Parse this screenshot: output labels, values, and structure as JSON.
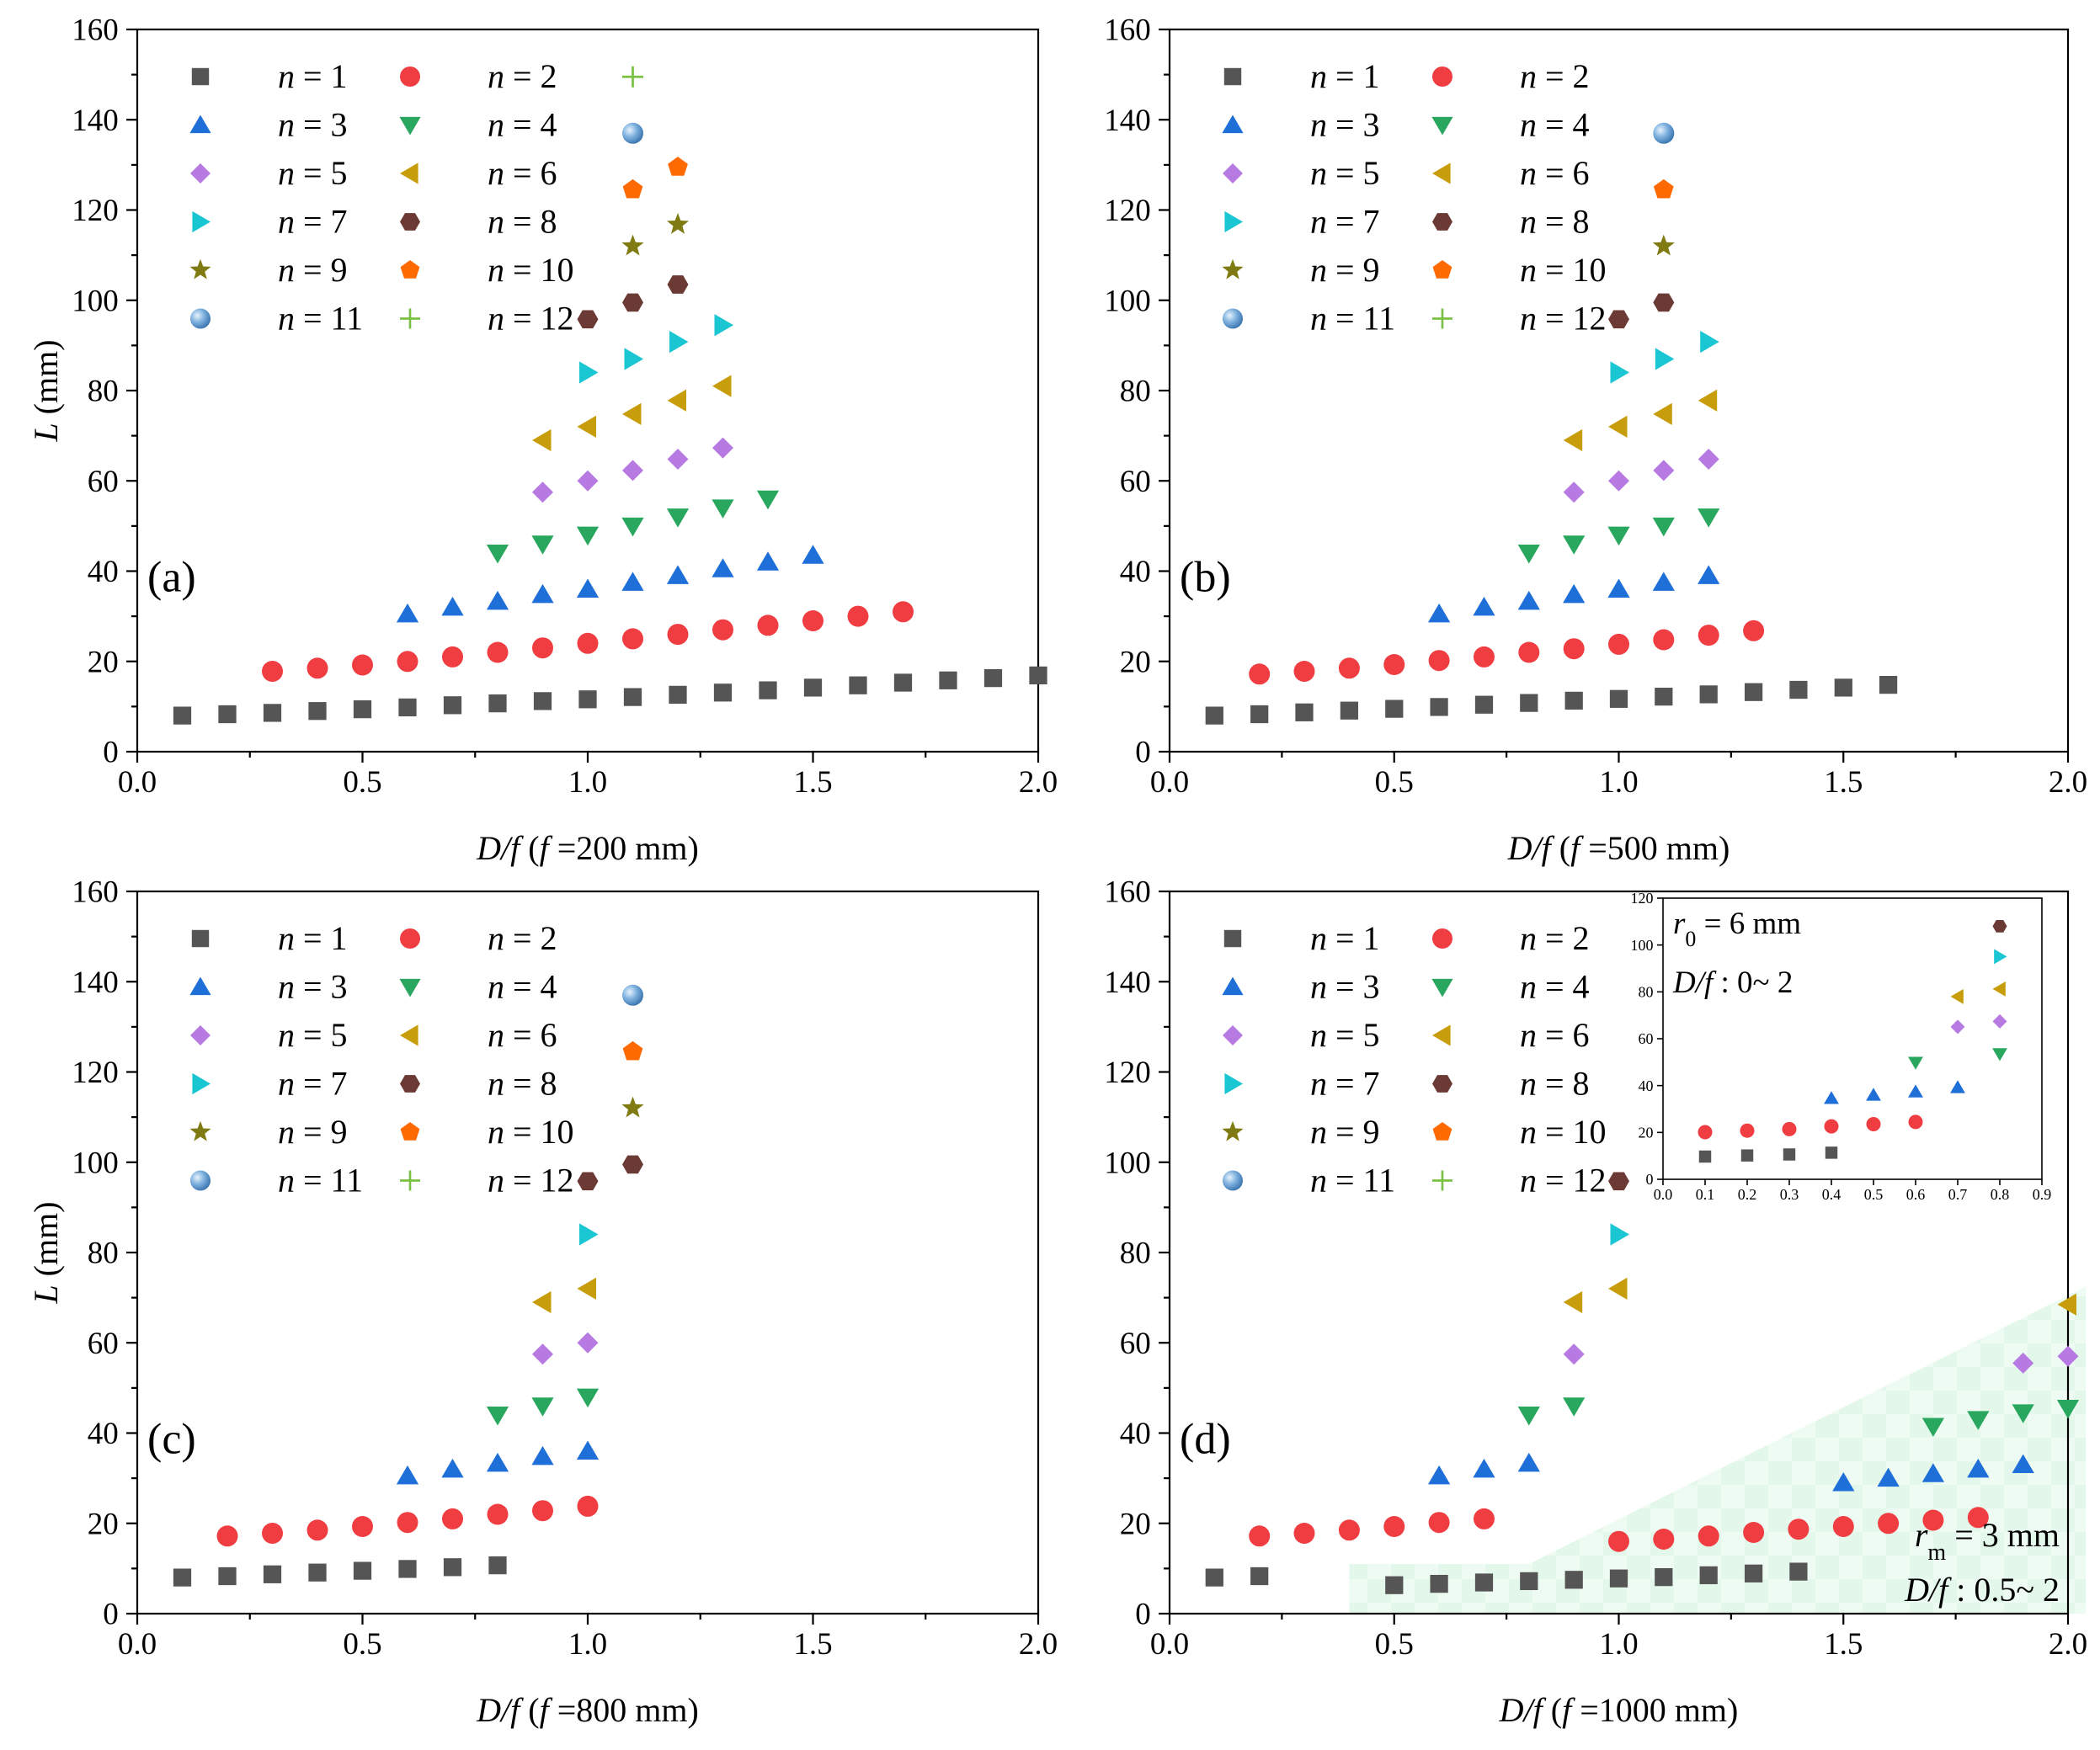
{
  "figure": {
    "panel_count": 4
  },
  "colors": {
    "n1": "#555555",
    "n2": "#ef3d42",
    "n3": "#1f6fd8",
    "n4": "#2aa75f",
    "n5": "#b779e2",
    "n6": "#c89d0b",
    "n7": "#19c6d2",
    "n8": "#6b3a35",
    "n9": "#7f7b12",
    "n10": "#ff6a00",
    "n11": "#4f8fc7",
    "n12": "#7ac142",
    "shade": "#d8f5e4"
  },
  "legend_series": [
    {
      "key": "n1",
      "n_label": "n",
      "eq_label": " = 1",
      "marker": "square"
    },
    {
      "key": "n2",
      "n_label": "n",
      "eq_label": " = 2",
      "marker": "circle"
    },
    {
      "key": "n3",
      "n_label": "n",
      "eq_label": " = 3",
      "marker": "tri-up"
    },
    {
      "key": "n4",
      "n_label": "n",
      "eq_label": " = 4",
      "marker": "tri-down"
    },
    {
      "key": "n5",
      "n_label": "n",
      "eq_label": " = 5",
      "marker": "diamond"
    },
    {
      "key": "n6",
      "n_label": "n",
      "eq_label": " = 6",
      "marker": "tri-left"
    },
    {
      "key": "n7",
      "n_label": "n",
      "eq_label": " = 7",
      "marker": "tri-right"
    },
    {
      "key": "n8",
      "n_label": "n",
      "eq_label": " = 8",
      "marker": "hexagon"
    },
    {
      "key": "n9",
      "n_label": "n",
      "eq_label": " = 9",
      "marker": "star"
    },
    {
      "key": "n10",
      "n_label": "n",
      "eq_label": " = 10",
      "marker": "pentagon"
    },
    {
      "key": "n11",
      "n_label": "n",
      "eq_label": " = 11",
      "marker": "sphere"
    },
    {
      "key": "n12",
      "n_label": "n",
      "eq_label": " = 12",
      "marker": "plus"
    }
  ],
  "chart_data": [
    {
      "type": "scatter",
      "panel_label": "(a)",
      "ylabel_var": "L",
      "ylabel_unit": " (mm)",
      "xlabel_var": "D/f",
      "xlabel_open": "  (",
      "xlabel_f": "f",
      "xlabel_val": " =200 mm)",
      "xlim": [
        0,
        2
      ],
      "ylim": [
        0,
        160
      ],
      "xticks": [
        "0.0",
        "0.5",
        "1.0",
        "1.5",
        "2.0"
      ],
      "yticks": [
        "0",
        "20",
        "40",
        "60",
        "80",
        "100",
        "120",
        "140",
        "160"
      ],
      "series": [
        {
          "key": "n1",
          "x": [
            0.1,
            0.2,
            0.3,
            0.4,
            0.5,
            0.6,
            0.7,
            0.8,
            0.9,
            1.0,
            1.1,
            1.2,
            1.3,
            1.4,
            1.5,
            1.6,
            1.7,
            1.8,
            1.9,
            2.0
          ],
          "y": [
            8,
            8.3,
            8.6,
            9,
            9.4,
            9.8,
            10.3,
            10.7,
            11.2,
            11.6,
            12.1,
            12.6,
            13.1,
            13.6,
            14.2,
            14.7,
            15.3,
            15.8,
            16.3,
            16.9
          ]
        },
        {
          "key": "n2",
          "x": [
            0.3,
            0.4,
            0.5,
            0.6,
            0.7,
            0.8,
            0.9,
            1.0,
            1.1,
            1.2,
            1.3,
            1.4,
            1.5,
            1.6,
            1.7
          ],
          "y": [
            17.8,
            18.5,
            19.2,
            20,
            21,
            22,
            23,
            24,
            25,
            26,
            27,
            28,
            29,
            30,
            31
          ]
        },
        {
          "key": "n3",
          "x": [
            0.6,
            0.7,
            0.8,
            0.9,
            1.0,
            1.1,
            1.2,
            1.3,
            1.4,
            1.5
          ],
          "y": [
            30.5,
            32,
            33.3,
            34.8,
            36,
            37.5,
            39,
            40.5,
            42,
            43.5
          ]
        },
        {
          "key": "n4",
          "x": [
            0.8,
            0.9,
            1.0,
            1.1,
            1.2,
            1.3,
            1.4
          ],
          "y": [
            44,
            46,
            48,
            50,
            52,
            54,
            56
          ]
        },
        {
          "key": "n5",
          "x": [
            0.9,
            1.0,
            1.1,
            1.2,
            1.3
          ],
          "y": [
            57.5,
            60,
            62.3,
            64.8,
            67.3
          ]
        },
        {
          "key": "n6",
          "x": [
            0.9,
            1.0,
            1.1,
            1.2,
            1.3
          ],
          "y": [
            69,
            72,
            74.8,
            77.8,
            81
          ]
        },
        {
          "key": "n7",
          "x": [
            1.0,
            1.1,
            1.2,
            1.3
          ],
          "y": [
            84,
            87,
            90.8,
            94.5
          ]
        },
        {
          "key": "n8",
          "x": [
            1.0,
            1.1,
            1.2
          ],
          "y": [
            95.8,
            99.5,
            103.5
          ]
        },
        {
          "key": "n9",
          "x": [
            1.1,
            1.2
          ],
          "y": [
            112,
            116.8
          ]
        },
        {
          "key": "n10",
          "x": [
            1.1,
            1.2
          ],
          "y": [
            124.5,
            129.5
          ]
        },
        {
          "key": "n11",
          "x": [
            1.1
          ],
          "y": [
            137
          ]
        },
        {
          "key": "n12",
          "x": [
            1.1
          ],
          "y": [
            149.5
          ]
        }
      ]
    },
    {
      "type": "scatter",
      "panel_label": "(b)",
      "ylabel_var": "",
      "ylabel_unit": "",
      "xlabel_var": "D/f",
      "xlabel_open": "  (",
      "xlabel_f": "f",
      "xlabel_val": " =500 mm)",
      "xlim": [
        0,
        2
      ],
      "ylim": [
        0,
        160
      ],
      "xticks": [
        "0.0",
        "0.5",
        "1.0",
        "1.5",
        "2.0"
      ],
      "yticks": [
        "0",
        "20",
        "40",
        "60",
        "80",
        "100",
        "120",
        "140",
        "160"
      ],
      "series": [
        {
          "key": "n1",
          "x": [
            0.1,
            0.2,
            0.3,
            0.4,
            0.5,
            0.6,
            0.7,
            0.8,
            0.9,
            1.0,
            1.1,
            1.2,
            1.3,
            1.4,
            1.5,
            1.6
          ],
          "y": [
            8,
            8.3,
            8.7,
            9.1,
            9.5,
            9.9,
            10.4,
            10.8,
            11.3,
            11.7,
            12.2,
            12.7,
            13.2,
            13.7,
            14.2,
            14.8
          ]
        },
        {
          "key": "n2",
          "x": [
            0.2,
            0.3,
            0.4,
            0.5,
            0.6,
            0.7,
            0.8,
            0.9,
            1.0,
            1.1,
            1.2,
            1.3
          ],
          "y": [
            17.2,
            17.8,
            18.5,
            19.3,
            20.2,
            21,
            22,
            22.8,
            23.8,
            24.8,
            25.8,
            26.8
          ]
        },
        {
          "key": "n3",
          "x": [
            0.6,
            0.7,
            0.8,
            0.9,
            1.0,
            1.1,
            1.2
          ],
          "y": [
            30.5,
            32,
            33.3,
            34.8,
            36,
            37.5,
            39
          ]
        },
        {
          "key": "n4",
          "x": [
            0.8,
            0.9,
            1.0,
            1.1,
            1.2
          ],
          "y": [
            44,
            46,
            48,
            50,
            52
          ]
        },
        {
          "key": "n5",
          "x": [
            0.9,
            1.0,
            1.1,
            1.2
          ],
          "y": [
            57.5,
            60,
            62.3,
            64.8
          ]
        },
        {
          "key": "n6",
          "x": [
            0.9,
            1.0,
            1.1,
            1.2
          ],
          "y": [
            69,
            72,
            74.8,
            77.8
          ]
        },
        {
          "key": "n7",
          "x": [
            1.0,
            1.1,
            1.2
          ],
          "y": [
            84,
            87,
            90.8
          ]
        },
        {
          "key": "n8",
          "x": [
            1.0,
            1.1
          ],
          "y": [
            95.8,
            99.5
          ]
        },
        {
          "key": "n9",
          "x": [
            1.1
          ],
          "y": [
            112
          ]
        },
        {
          "key": "n10",
          "x": [
            1.1
          ],
          "y": [
            124.5
          ]
        },
        {
          "key": "n11",
          "x": [
            1.1
          ],
          "y": [
            137
          ]
        }
      ]
    },
    {
      "type": "scatter",
      "panel_label": "(c)",
      "ylabel_var": "L",
      "ylabel_unit": " (mm)",
      "xlabel_var": "D/f",
      "xlabel_open": "  (",
      "xlabel_f": "f",
      "xlabel_val": " =800 mm)",
      "xlim": [
        0,
        2
      ],
      "ylim": [
        0,
        160
      ],
      "xticks": [
        "0.0",
        "0.5",
        "1.0",
        "1.5",
        "2.0"
      ],
      "yticks": [
        "0",
        "20",
        "40",
        "60",
        "80",
        "100",
        "120",
        "140",
        "160"
      ],
      "series": [
        {
          "key": "n1",
          "x": [
            0.1,
            0.2,
            0.3,
            0.4,
            0.5,
            0.6,
            0.7,
            0.8
          ],
          "y": [
            8,
            8.3,
            8.7,
            9.1,
            9.5,
            9.9,
            10.3,
            10.7
          ]
        },
        {
          "key": "n2",
          "x": [
            0.2,
            0.3,
            0.4,
            0.5,
            0.6,
            0.7,
            0.8,
            0.9,
            1.0
          ],
          "y": [
            17.2,
            17.8,
            18.5,
            19.3,
            20.2,
            21,
            22,
            22.8,
            23.8
          ]
        },
        {
          "key": "n3",
          "x": [
            0.6,
            0.7,
            0.8,
            0.9,
            1.0
          ],
          "y": [
            30.5,
            32,
            33.3,
            34.8,
            36
          ]
        },
        {
          "key": "n4",
          "x": [
            0.8,
            0.9,
            1.0
          ],
          "y": [
            44,
            46,
            48
          ]
        },
        {
          "key": "n5",
          "x": [
            0.9,
            1.0
          ],
          "y": [
            57.5,
            60
          ]
        },
        {
          "key": "n6",
          "x": [
            0.9,
            1.0
          ],
          "y": [
            69,
            72
          ]
        },
        {
          "key": "n7",
          "x": [
            1.0
          ],
          "y": [
            84
          ]
        },
        {
          "key": "n8",
          "x": [
            1.0,
            1.1
          ],
          "y": [
            95.8,
            99.5
          ]
        },
        {
          "key": "n9",
          "x": [
            1.1
          ],
          "y": [
            112
          ]
        },
        {
          "key": "n10",
          "x": [
            1.1
          ],
          "y": [
            124.5
          ]
        },
        {
          "key": "n11",
          "x": [
            1.1
          ],
          "y": [
            137
          ]
        }
      ]
    },
    {
      "type": "scatter",
      "panel_label": "(d)",
      "ylabel_var": "",
      "ylabel_unit": "",
      "xlabel_var": "D/f",
      "xlabel_open": "  (",
      "xlabel_f": "f",
      "xlabel_val": " =1000 mm)",
      "xlim": [
        0,
        2
      ],
      "ylim": [
        0,
        160
      ],
      "xticks": [
        "0.0",
        "0.5",
        "1.0",
        "1.5",
        "2.0"
      ],
      "yticks": [
        "0",
        "20",
        "40",
        "60",
        "80",
        "100",
        "120",
        "140",
        "160"
      ],
      "shaded_region_data": [
        [
          0.4,
          0
        ],
        [
          0.4,
          11
        ],
        [
          0.8,
          11
        ],
        [
          2.04,
          72.5
        ],
        [
          2.04,
          0
        ]
      ],
      "annotation_rm_var": "r",
      "annotation_rm_sub": "m",
      "annotation_rm_val": " = 3 mm",
      "annotation_df_var": "D/f",
      "annotation_df_val": " : 0.5~ 2",
      "series": [
        {
          "key": "n1",
          "x": [
            0.1,
            0.2
          ],
          "y": [
            8,
            8.3
          ]
        },
        {
          "key": "n2",
          "x": [
            0.2,
            0.3,
            0.4,
            0.5,
            0.6,
            0.7
          ],
          "y": [
            17.2,
            17.8,
            18.5,
            19.3,
            20.2,
            21
          ]
        },
        {
          "key": "n3",
          "x": [
            0.6,
            0.7,
            0.8
          ],
          "y": [
            30.5,
            32,
            33.3
          ]
        },
        {
          "key": "n4",
          "x": [
            0.8,
            0.9
          ],
          "y": [
            44,
            46
          ]
        },
        {
          "key": "n5",
          "x": [
            0.9
          ],
          "y": [
            57.5
          ]
        },
        {
          "key": "n6",
          "x": [
            0.9,
            1.0
          ],
          "y": [
            69,
            72
          ]
        },
        {
          "key": "n7",
          "x": [
            1.0
          ],
          "y": [
            84
          ]
        },
        {
          "key": "n8",
          "x": [
            1.0
          ],
          "y": [
            95.8
          ]
        },
        {
          "key": "n1",
          "x": [
            0.5,
            0.6,
            0.7,
            0.8,
            0.9,
            1.0,
            1.1,
            1.2,
            1.3,
            1.4
          ],
          "y": [
            6.3,
            6.6,
            6.9,
            7.2,
            7.5,
            7.8,
            8.1,
            8.5,
            8.9,
            9.3
          ]
        },
        {
          "key": "n2",
          "x": [
            1.0,
            1.1,
            1.2,
            1.3,
            1.4,
            1.5,
            1.6,
            1.7,
            1.8
          ],
          "y": [
            16,
            16.5,
            17.2,
            18,
            18.7,
            19.3,
            20,
            20.7,
            21.3
          ]
        },
        {
          "key": "n3",
          "x": [
            1.5,
            1.6,
            1.7,
            1.8,
            1.9
          ],
          "y": [
            29,
            30,
            31,
            32,
            33
          ]
        },
        {
          "key": "n4",
          "x": [
            1.7,
            1.8,
            1.9,
            2.0
          ],
          "y": [
            41.5,
            43,
            44.5,
            45.5
          ]
        },
        {
          "key": "n5",
          "x": [
            1.9,
            2.0
          ],
          "y": [
            55.5,
            57
          ]
        },
        {
          "key": "n6",
          "x": [
            2.0
          ],
          "y": [
            68.5
          ]
        }
      ],
      "inset": {
        "xlim": [
          0,
          0.9
        ],
        "ylim": [
          0,
          130
        ],
        "xticks": [
          "0.0",
          "0.1",
          "0.2",
          "0.3",
          "0.4",
          "0.5",
          "0.6",
          "0.7",
          "0.8",
          "0.9"
        ],
        "yticks": [
          "0",
          "20",
          "40",
          "60",
          "80",
          "100",
          "120"
        ],
        "annotation_r0_var": "r",
        "annotation_r0_sub": "0",
        "annotation_r0_val": " = 6 mm",
        "annotation_df_var": "D/f",
        "annotation_df_val": " : 0~ 2",
        "series": [
          {
            "key": "n1",
            "x": [
              0.1,
              0.2,
              0.3,
              0.4
            ],
            "y": [
              10.5,
              11,
              11.5,
              12.3
            ]
          },
          {
            "key": "n2",
            "x": [
              0.1,
              0.2,
              0.3,
              0.4,
              0.5,
              0.6
            ],
            "y": [
              21.8,
              22.5,
              23.2,
              24.5,
              25.5,
              26.5
            ]
          },
          {
            "key": "n3",
            "x": [
              0.4,
              0.5,
              0.6,
              0.7
            ],
            "y": [
              37.5,
              39,
              40.5,
              42.5
            ]
          },
          {
            "key": "n4",
            "x": [
              0.6,
              0.8
            ],
            "y": [
              54,
              58
            ]
          },
          {
            "key": "n5",
            "x": [
              0.7,
              0.8
            ],
            "y": [
              70.5,
              73
            ]
          },
          {
            "key": "n6",
            "x": [
              0.7,
              0.8
            ],
            "y": [
              84.5,
              88
            ]
          },
          {
            "key": "n7",
            "x": [
              0.8
            ],
            "y": [
              103
            ]
          },
          {
            "key": "n8",
            "x": [
              0.8
            ],
            "y": [
              117
            ]
          }
        ]
      }
    }
  ]
}
